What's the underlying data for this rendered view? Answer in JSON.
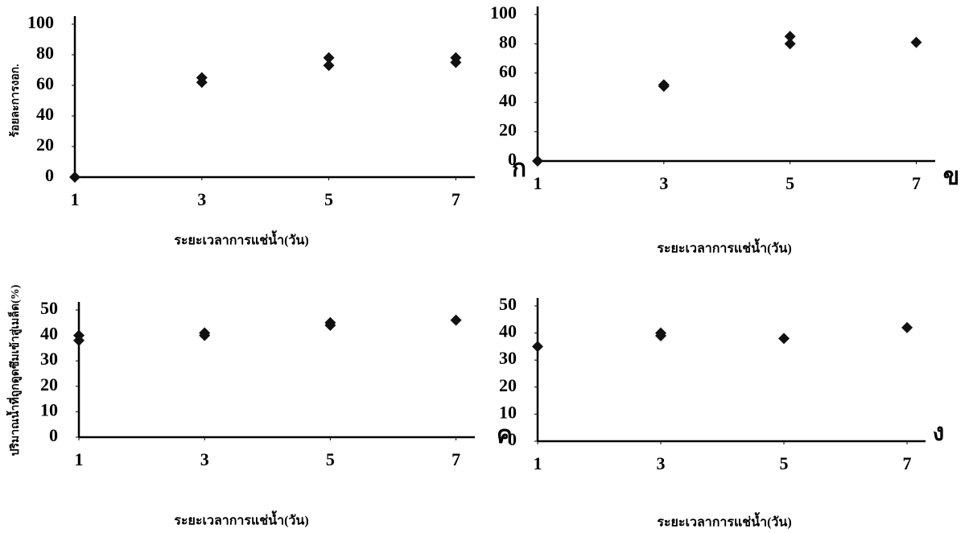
{
  "chart_data": [
    {
      "type": "scatter",
      "title": "ก",
      "x_label": "ระยะเวลาการแช่น้ำ(วัน)",
      "y_label": "ร้อยละการงอก.",
      "x": [
        1,
        3,
        3,
        5,
        5,
        7,
        7
      ],
      "values": [
        0,
        65,
        62,
        78,
        73,
        78,
        75
      ],
      "color": "#111111",
      "xlim": [
        1,
        7.3
      ],
      "xticks": [
        1,
        3,
        5,
        7
      ],
      "ylim": [
        0,
        100
      ],
      "yticks": [
        0,
        20,
        40,
        60,
        80,
        100
      ]
    },
    {
      "type": "scatter",
      "title": "ข",
      "x_label": "ระยะเวลาการแช่น้ำ(วัน)",
      "x": [
        1,
        3,
        3,
        5,
        5,
        7
      ],
      "values": [
        0,
        52,
        51,
        85,
        80,
        81
      ],
      "color": "#111111",
      "xlim": [
        1,
        7.3
      ],
      "xticks": [
        1,
        3,
        5,
        7
      ],
      "ylim": [
        0,
        100
      ],
      "yticks": [
        0,
        20,
        40,
        60,
        80,
        100
      ]
    },
    {
      "type": "scatter",
      "title": "ค",
      "x_label": "ระยะเวลาการแช่น้ำ(วัน)",
      "y_label": "ปริมาณน้ำที่ถูกดูดซึมเข้าสู่เมล็ด(%)",
      "x": [
        1,
        1,
        3,
        3,
        5,
        5,
        7
      ],
      "values": [
        40,
        38,
        41,
        40,
        45,
        44,
        46
      ],
      "color": "#111111",
      "xlim": [
        1,
        7.3
      ],
      "xticks": [
        1,
        3,
        5,
        7
      ],
      "ylim": [
        0,
        50
      ],
      "yticks": [
        0,
        10,
        20,
        30,
        40,
        50
      ]
    },
    {
      "type": "scatter",
      "title": "ง",
      "x_label": "ระยะเวลาการแช่น้ำ(วัน)",
      "x": [
        1,
        3,
        3,
        5,
        7
      ],
      "values": [
        35,
        40,
        39,
        38,
        42
      ],
      "color": "#111111",
      "xlim": [
        1,
        7.3
      ],
      "xticks": [
        1,
        3,
        5,
        7
      ],
      "ylim": [
        0,
        50
      ],
      "yticks": [
        0,
        10,
        20,
        30,
        40,
        50
      ]
    }
  ]
}
